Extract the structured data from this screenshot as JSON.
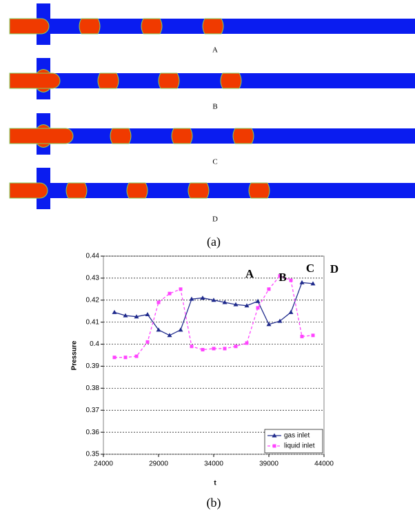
{
  "figure": {
    "panel_labels": [
      "A",
      "B",
      "C",
      "D"
    ],
    "caption_a": "(a)",
    "caption_b": "(b)"
  },
  "chart_data": {
    "type": "line",
    "x_label": "t",
    "y_label": "Pressure",
    "x": [
      25000,
      26000,
      27000,
      28000,
      29000,
      30000,
      31000,
      32000,
      33000,
      34000,
      35000,
      36000,
      37000,
      38000,
      39000,
      40000,
      41000,
      42000,
      43000
    ],
    "series": [
      {
        "name": "gas inlet",
        "color": "#1f2a8c",
        "marker": "triangle",
        "dash": false,
        "values": [
          0.4145,
          0.413,
          0.4125,
          0.4135,
          0.4065,
          0.404,
          0.4065,
          0.4205,
          0.421,
          0.42,
          0.419,
          0.418,
          0.4175,
          0.4195,
          0.409,
          0.4105,
          0.4145,
          0.428,
          0.4275
        ]
      },
      {
        "name": "liquid inlet",
        "color": "#ff44ff",
        "marker": "square",
        "dash": true,
        "values": [
          0.394,
          0.394,
          0.3945,
          0.401,
          0.419,
          0.423,
          0.425,
          0.399,
          0.3975,
          0.398,
          0.398,
          0.399,
          0.4005,
          0.4165,
          0.425,
          0.431,
          0.429,
          0.4035,
          0.404
        ]
      }
    ],
    "annotations": [
      "A",
      "B",
      "C",
      "D"
    ],
    "xlim": [
      24000,
      44000
    ],
    "xticks": [
      24000,
      29000,
      34000,
      39000,
      44000
    ],
    "ylim": [
      0.35,
      0.44
    ],
    "yticks": [
      0.35,
      0.36,
      0.37,
      0.38,
      0.39,
      0.4,
      0.41,
      0.42,
      0.43,
      0.44
    ],
    "grid": true,
    "legend": "lower-right"
  }
}
